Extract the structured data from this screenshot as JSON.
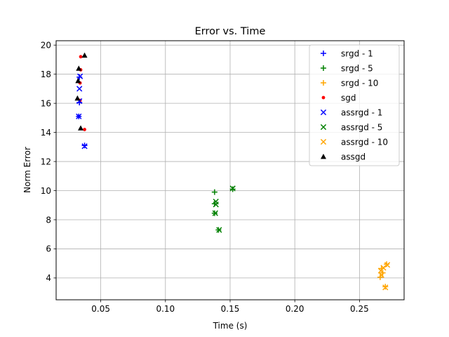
{
  "chart_data": {
    "type": "scatter",
    "title": "Error vs. Time",
    "xlabel": "Time (s)",
    "ylabel": "Norm Error",
    "xlim": [
      0.0155,
      0.2845
    ],
    "ylim": [
      2.5,
      20.3
    ],
    "xticks": [
      0.05,
      0.1,
      0.15,
      0.2,
      0.25
    ],
    "xtick_labels": [
      "0.05",
      "0.10",
      "0.15",
      "0.20",
      "0.25"
    ],
    "yticks": [
      4,
      6,
      8,
      10,
      12,
      14,
      16,
      18,
      20
    ],
    "ytick_labels": [
      "4",
      "6",
      "8",
      "10",
      "12",
      "14",
      "16",
      "18",
      "20"
    ],
    "grid": true,
    "legend_position": "top-right",
    "series": [
      {
        "name": "srgd - 1",
        "marker": "plus",
        "color": "#0000ff",
        "points": [
          [
            0.0335,
            17.8
          ],
          [
            0.0335,
            16.05
          ],
          [
            0.033,
            15.1
          ],
          [
            0.0375,
            13.1
          ]
        ]
      },
      {
        "name": "srgd - 5",
        "marker": "plus",
        "color": "#008000",
        "points": [
          [
            0.138,
            9.9
          ],
          [
            0.138,
            9.1
          ],
          [
            0.138,
            8.45
          ],
          [
            0.141,
            7.3
          ],
          [
            0.152,
            10.1
          ]
        ]
      },
      {
        "name": "srgd - 10",
        "marker": "plus",
        "color": "#ffa500",
        "points": [
          [
            0.267,
            4.65
          ],
          [
            0.268,
            4.35
          ],
          [
            0.266,
            4.05
          ],
          [
            0.271,
            4.95
          ],
          [
            0.27,
            3.4
          ]
        ]
      },
      {
        "name": "sgd",
        "marker": "dot",
        "color": "#ff0000",
        "points": [
          [
            0.0345,
            19.2
          ],
          [
            0.0345,
            18.3
          ],
          [
            0.034,
            17.4
          ],
          [
            0.034,
            16.2
          ],
          [
            0.0375,
            14.2
          ]
        ]
      },
      {
        "name": "assrgd - 1",
        "marker": "x",
        "color": "#0000ff",
        "points": [
          [
            0.034,
            17.85
          ],
          [
            0.0335,
            17.0
          ],
          [
            0.0335,
            16.15
          ],
          [
            0.033,
            15.1
          ],
          [
            0.0375,
            13.05
          ]
        ]
      },
      {
        "name": "assrgd - 5",
        "marker": "x",
        "color": "#008000",
        "points": [
          [
            0.139,
            9.25
          ],
          [
            0.139,
            9.05
          ],
          [
            0.1385,
            8.45
          ],
          [
            0.1415,
            7.3
          ],
          [
            0.152,
            10.15
          ]
        ]
      },
      {
        "name": "assrgd - 10",
        "marker": "x",
        "color": "#ffa500",
        "points": [
          [
            0.2665,
            4.5
          ],
          [
            0.267,
            4.2
          ],
          [
            0.2685,
            4.7
          ],
          [
            0.2715,
            4.9
          ],
          [
            0.27,
            3.35
          ]
        ]
      },
      {
        "name": "assgd",
        "marker": "triangle",
        "color": "#000000",
        "points": [
          [
            0.0375,
            19.3
          ],
          [
            0.033,
            18.4
          ],
          [
            0.0325,
            17.55
          ],
          [
            0.032,
            16.35
          ],
          [
            0.0345,
            14.3
          ]
        ]
      }
    ]
  }
}
